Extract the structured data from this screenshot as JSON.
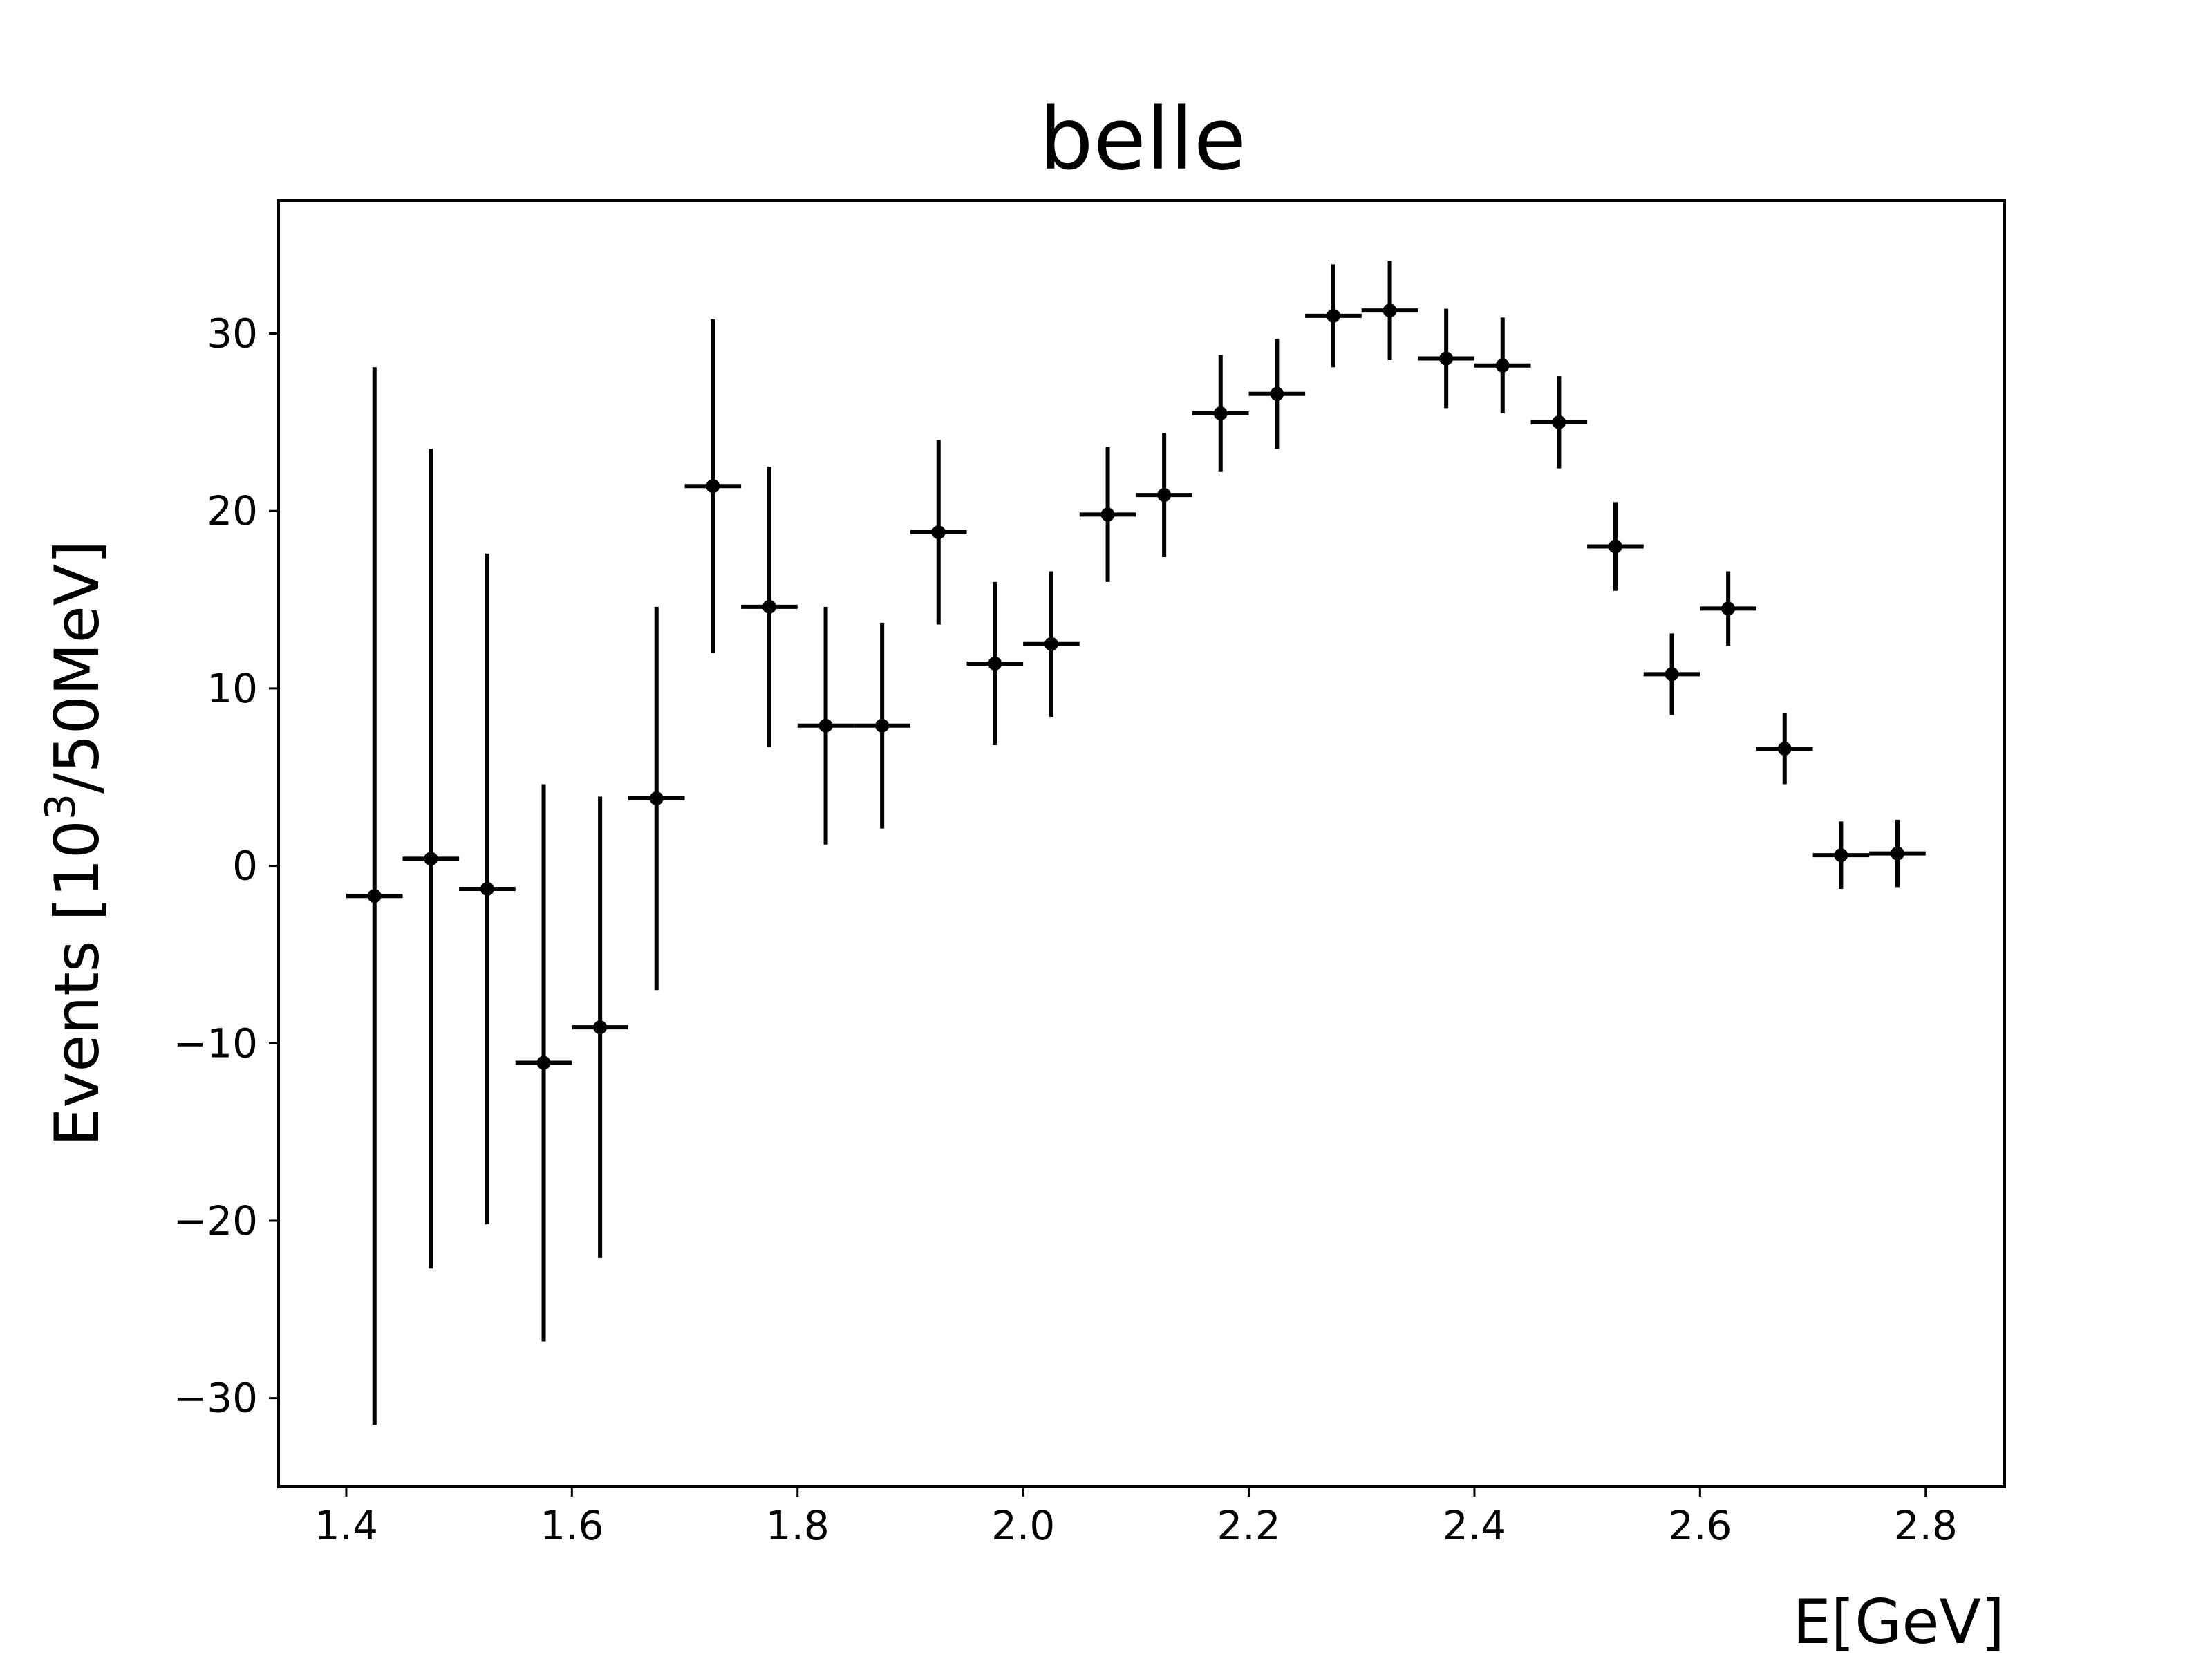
{
  "chart_data": {
    "type": "scatter",
    "title": "belle",
    "xlabel": "E[GeV]",
    "ylabel": {
      "text": "Events [10",
      "superscript": "3",
      "suffix": "/50MeV]"
    },
    "xlim": [
      1.34,
      2.87
    ],
    "ylim": [
      -35,
      37.5
    ],
    "grid": false,
    "legend": "none",
    "x_ticks": [
      1.4,
      1.6,
      1.8,
      2.0,
      2.2,
      2.4,
      2.6,
      2.8
    ],
    "x_tick_labels": [
      "1.4",
      "1.6",
      "1.8",
      "2.0",
      "2.2",
      "2.4",
      "2.6",
      "2.8"
    ],
    "y_ticks": [
      -30,
      -20,
      -10,
      0,
      10,
      20,
      30
    ],
    "y_tick_labels": [
      "−30",
      "−20",
      "−10",
      "0",
      "10",
      "20",
      "30"
    ],
    "x_error": 0.025,
    "color": "#000000",
    "points": [
      {
        "x": 1.425,
        "y": -1.7,
        "yerr": 29.8
      },
      {
        "x": 1.475,
        "y": 0.4,
        "yerr": 23.1
      },
      {
        "x": 1.525,
        "y": -1.3,
        "yerr": 18.9
      },
      {
        "x": 1.575,
        "y": -11.1,
        "yerr": 15.7
      },
      {
        "x": 1.625,
        "y": -9.1,
        "yerr": 13.0
      },
      {
        "x": 1.675,
        "y": 3.8,
        "yerr": 10.8
      },
      {
        "x": 1.725,
        "y": 21.4,
        "yerr": 9.4
      },
      {
        "x": 1.775,
        "y": 14.6,
        "yerr": 7.9
      },
      {
        "x": 1.825,
        "y": 7.9,
        "yerr": 6.7
      },
      {
        "x": 1.875,
        "y": 7.9,
        "yerr": 5.8
      },
      {
        "x": 1.925,
        "y": 18.8,
        "yerr": 5.2
      },
      {
        "x": 1.975,
        "y": 11.4,
        "yerr": 4.6
      },
      {
        "x": 2.025,
        "y": 12.5,
        "yerr": 4.1
      },
      {
        "x": 2.075,
        "y": 19.8,
        "yerr": 3.8
      },
      {
        "x": 2.125,
        "y": 20.9,
        "yerr": 3.5
      },
      {
        "x": 2.175,
        "y": 25.5,
        "yerr": 3.3
      },
      {
        "x": 2.225,
        "y": 26.6,
        "yerr": 3.1
      },
      {
        "x": 2.275,
        "y": 31.0,
        "yerr": 2.9
      },
      {
        "x": 2.325,
        "y": 31.3,
        "yerr": 2.8
      },
      {
        "x": 2.375,
        "y": 28.6,
        "yerr": 2.8
      },
      {
        "x": 2.425,
        "y": 28.2,
        "yerr": 2.7
      },
      {
        "x": 2.475,
        "y": 25.0,
        "yerr": 2.6
      },
      {
        "x": 2.525,
        "y": 18.0,
        "yerr": 2.5
      },
      {
        "x": 2.575,
        "y": 10.8,
        "yerr": 2.3
      },
      {
        "x": 2.625,
        "y": 14.5,
        "yerr": 2.1
      },
      {
        "x": 2.675,
        "y": 6.6,
        "yerr": 2.0
      },
      {
        "x": 2.725,
        "y": 0.6,
        "yerr": 1.9
      },
      {
        "x": 2.775,
        "y": 0.7,
        "yerr": 1.9
      }
    ]
  }
}
